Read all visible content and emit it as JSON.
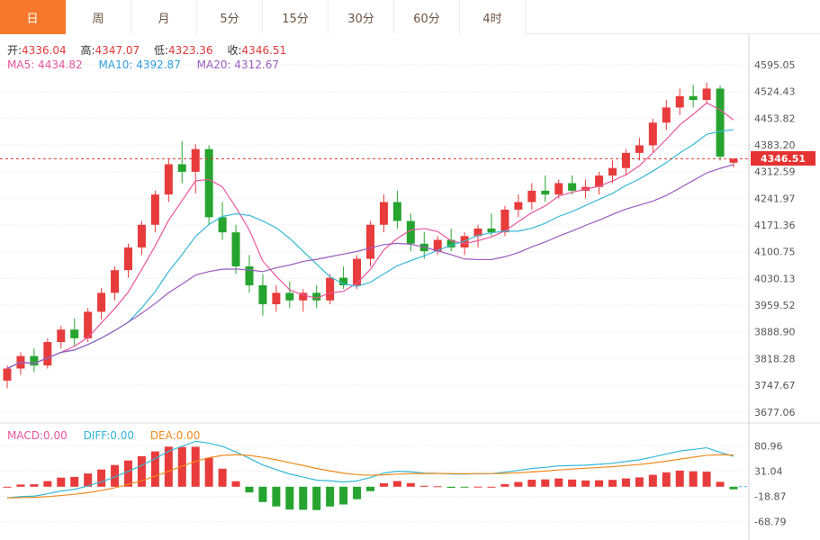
{
  "tabs": {
    "items": [
      {
        "label": "日",
        "active": true
      },
      {
        "label": "周",
        "active": false
      },
      {
        "label": "月",
        "active": false
      },
      {
        "label": "5分",
        "active": false
      },
      {
        "label": "15分",
        "active": false
      },
      {
        "label": "30分",
        "active": false
      },
      {
        "label": "60分",
        "active": false
      },
      {
        "label": "4时",
        "active": false
      }
    ]
  },
  "ohlc": {
    "open_label": "开:",
    "open": "4336.04",
    "high_label": "高:",
    "high": "4347.07",
    "low_label": "低:",
    "low": "4323.36",
    "close_label": "收:",
    "close": "4346.51"
  },
  "ma_legend": {
    "ma5": "MA5: 4434.82",
    "ma10": "MA10: 4392.87",
    "ma20": "MA20: 4312.67"
  },
  "macd_legend": {
    "macd": "MACD:0.00",
    "diff": "DIFF:0.00",
    "dea": "DEA:0.00"
  },
  "price_tag": "4346.51",
  "colors": {
    "up": "#e83b3b",
    "down": "#26a42f",
    "ma5": "#e8559c",
    "ma10": "#35b8d8",
    "ma20": "#9a5bbf",
    "diff": "#35b8d8",
    "dea": "#f08a1d",
    "accent": "#f7782a",
    "price_line": "#e63232",
    "grid": "#ededed",
    "axis_text": "#555555"
  },
  "chart_data": {
    "type": "candlestick",
    "title": "Daily gold price candlestick chart with MA overlays and MACD panel",
    "price_panel": {
      "y_axis_labels": [
        "4595.05",
        "4524.43",
        "4453.82",
        "4383.20",
        "4312.59",
        "4241.97",
        "4171.36",
        "4100.75",
        "4030.13",
        "3959.52",
        "3888.90",
        "3818.28",
        "3747.67",
        "3677.06"
      ],
      "y_range": [
        3648,
        4671
      ],
      "current_price": 4346.51,
      "overlays": [
        "MA5",
        "MA10",
        "MA20"
      ],
      "candles": [
        [
          3760,
          3800,
          3740,
          3792
        ],
        [
          3792,
          3835,
          3775,
          3825
        ],
        [
          3825,
          3845,
          3782,
          3800
        ],
        [
          3800,
          3872,
          3792,
          3862
        ],
        [
          3862,
          3905,
          3845,
          3895
        ],
        [
          3895,
          3925,
          3852,
          3872
        ],
        [
          3872,
          3952,
          3862,
          3942
        ],
        [
          3942,
          4005,
          3922,
          3992
        ],
        [
          3992,
          4062,
          3972,
          4052
        ],
        [
          4052,
          4122,
          4032,
          4112
        ],
        [
          4112,
          4182,
          4092,
          4172
        ],
        [
          4172,
          4262,
          4152,
          4252
        ],
        [
          4252,
          4345,
          4232,
          4332
        ],
        [
          4332,
          4392,
          4282,
          4312
        ],
        [
          4312,
          4385,
          4255,
          4372
        ],
        [
          4372,
          4382,
          4172,
          4192
        ],
        [
          4192,
          4232,
          4132,
          4152
        ],
        [
          4152,
          4172,
          4042,
          4062
        ],
        [
          4062,
          4092,
          3992,
          4012
        ],
        [
          4012,
          4042,
          3932,
          3962
        ],
        [
          3962,
          4012,
          3942,
          3992
        ],
        [
          3992,
          4022,
          3952,
          3972
        ],
        [
          3972,
          4002,
          3942,
          3992
        ],
        [
          3992,
          4012,
          3952,
          3972
        ],
        [
          3972,
          4042,
          3962,
          4032
        ],
        [
          4032,
          4062,
          4002,
          4012
        ],
        [
          4012,
          4092,
          4002,
          4082
        ],
        [
          4082,
          4182,
          4062,
          4172
        ],
        [
          4172,
          4252,
          4152,
          4232
        ],
        [
          4232,
          4262,
          4162,
          4182
        ],
        [
          4182,
          4202,
          4102,
          4122
        ],
        [
          4122,
          4152,
          4082,
          4102
        ],
        [
          4102,
          4142,
          4092,
          4132
        ],
        [
          4132,
          4162,
          4102,
          4112
        ],
        [
          4112,
          4152,
          4092,
          4142
        ],
        [
          4142,
          4172,
          4112,
          4162
        ],
        [
          4162,
          4202,
          4142,
          4152
        ],
        [
          4152,
          4222,
          4142,
          4212
        ],
        [
          4212,
          4252,
          4192,
          4232
        ],
        [
          4232,
          4282,
          4212,
          4262
        ],
        [
          4262,
          4302,
          4232,
          4252
        ],
        [
          4252,
          4292,
          4242,
          4282
        ],
        [
          4282,
          4302,
          4252,
          4262
        ],
        [
          4262,
          4292,
          4242,
          4272
        ],
        [
          4272,
          4312,
          4252,
          4302
        ],
        [
          4302,
          4342,
          4282,
          4322
        ],
        [
          4322,
          4372,
          4302,
          4362
        ],
        [
          4362,
          4402,
          4342,
          4382
        ],
        [
          4382,
          4452,
          4362,
          4442
        ],
        [
          4442,
          4502,
          4422,
          4482
        ],
        [
          4482,
          4532,
          4462,
          4512
        ],
        [
          4512,
          4542,
          4482,
          4502
        ],
        [
          4502,
          4548,
          4492,
          4532
        ],
        [
          4532,
          4540,
          4342,
          4352
        ],
        [
          4336.04,
          4347.07,
          4323.36,
          4346.51
        ]
      ]
    },
    "macd_panel": {
      "y_axis_labels": [
        "80.96",
        "31.04",
        "-18.87",
        "-68.79"
      ],
      "y_range": [
        -102,
        112
      ],
      "macd_params": [
        12,
        26,
        9
      ],
      "displayed": {
        "macd": "0.00",
        "diff": "0.00",
        "dea": "0.00"
      }
    }
  }
}
